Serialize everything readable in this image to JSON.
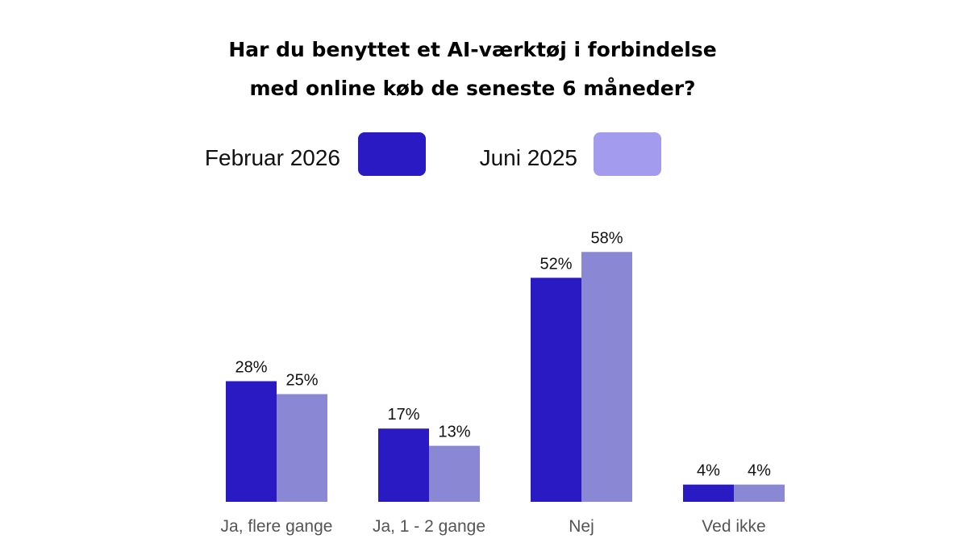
{
  "chart_data": {
    "type": "bar",
    "title": [
      "Har du benyttet et AI-værktøj i forbindelse",
      "med online køb de seneste 6 måneder?"
    ],
    "categories": [
      "Ja, flere gange",
      "Ja, 1 - 2 gange",
      "Nej",
      "Ved ikke"
    ],
    "series": [
      {
        "name": "Februar 2026",
        "values": [
          28,
          17,
          52,
          4
        ],
        "color": "#2A1AC4",
        "legend_color": "#2A1AC4"
      },
      {
        "name": "Juni 2025",
        "values": [
          25,
          13,
          58,
          4
        ],
        "color": "#8A87D4",
        "legend_color": "#A39CEE"
      }
    ],
    "value_suffix": "%",
    "ylim": [
      0,
      60
    ],
    "grid": false,
    "legend_placement": "top"
  }
}
